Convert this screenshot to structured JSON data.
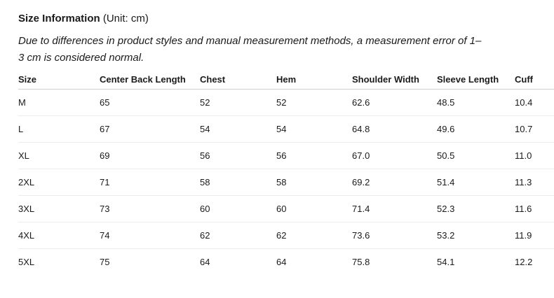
{
  "header": {
    "title_bold": "Size Information",
    "title_unit": "(Unit: cm)",
    "note_line1": "Due to differences in product styles and manual measurement methods, a measurement error of 1–",
    "note_line2": "3 cm is considered normal."
  },
  "table": {
    "columns": [
      "Size",
      "Center Back Length",
      "Chest",
      "Hem",
      "Shoulder Width",
      "Sleeve Length",
      "Cuff"
    ],
    "rows": [
      [
        "M",
        "65",
        "52",
        "52",
        "62.6",
        "48.5",
        "10.4"
      ],
      [
        "L",
        "67",
        "54",
        "54",
        "64.8",
        "49.6",
        "10.7"
      ],
      [
        "XL",
        "69",
        "56",
        "56",
        "67.0",
        "50.5",
        "11.0"
      ],
      [
        "2XL",
        "71",
        "58",
        "58",
        "69.2",
        "51.4",
        "11.3"
      ],
      [
        "3XL",
        "73",
        "60",
        "60",
        "71.4",
        "52.3",
        "11.6"
      ],
      [
        "4XL",
        "74",
        "62",
        "62",
        "73.6",
        "53.2",
        "11.9"
      ],
      [
        "5XL",
        "75",
        "64",
        "64",
        "75.8",
        "54.1",
        "12.2"
      ]
    ]
  }
}
